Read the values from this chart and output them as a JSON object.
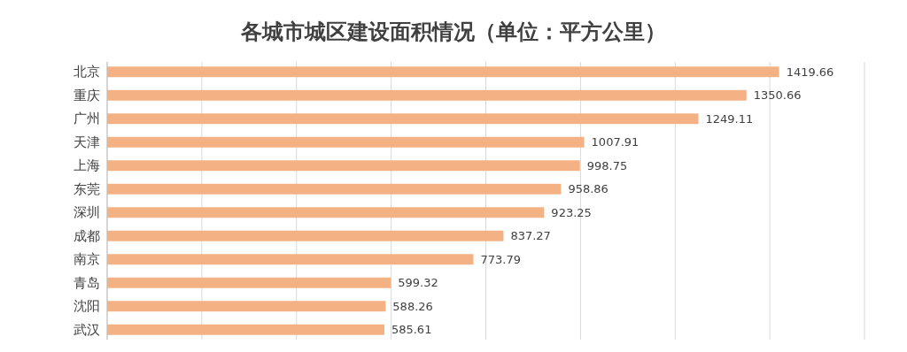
{
  "chart_data": {
    "type": "bar",
    "orientation": "horizontal",
    "title": "各城市城区建设面积情况（单位：平方公里）",
    "categories": [
      "北京",
      "重庆",
      "广州",
      "天津",
      "上海",
      "东莞",
      "深圳",
      "成都",
      "南京",
      "青岛",
      "沈阳",
      "武汉"
    ],
    "values": [
      1419.66,
      1350.66,
      1249.11,
      1007.91,
      998.75,
      958.86,
      923.25,
      837.27,
      773.79,
      599.32,
      588.26,
      585.61
    ],
    "color": "#f4b183",
    "xlim": [
      0,
      1600
    ],
    "xticks": [
      {
        "value": 0,
        "label": null
      },
      {
        "value": 200,
        "label": null
      },
      {
        "value": 400,
        "label": null
      },
      {
        "value": 600,
        "label": null
      },
      {
        "value": 800,
        "label": null
      },
      {
        "value": 1000,
        "label": null
      },
      {
        "value": 1200,
        "label": null
      },
      {
        "value": 1400,
        "label": null
      },
      {
        "value": 1600,
        "label": null
      }
    ],
    "grid": "x",
    "tick_labels": "y",
    "data_labels": true
  }
}
